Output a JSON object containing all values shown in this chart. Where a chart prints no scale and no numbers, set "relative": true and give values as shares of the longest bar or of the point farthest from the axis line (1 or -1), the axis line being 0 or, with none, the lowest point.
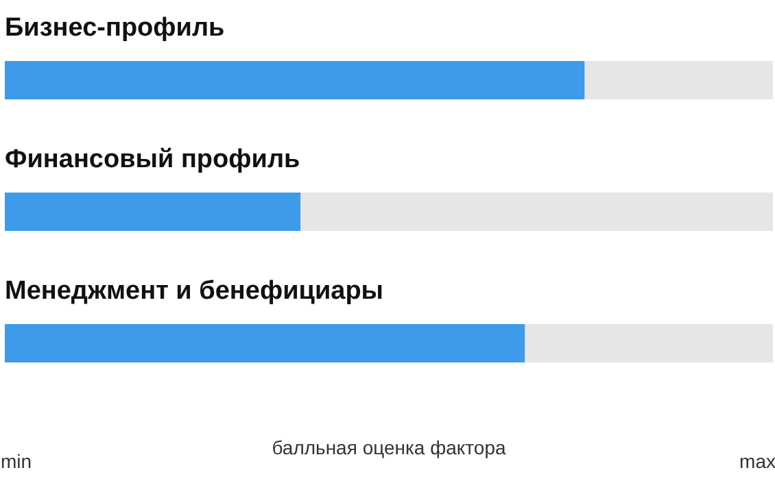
{
  "chart_data": {
    "type": "bar",
    "orientation": "horizontal",
    "relative": true,
    "categories": [
      "Бизнес-профиль",
      "Финансовый профиль",
      "Менеджмент и бенефициары"
    ],
    "values": [
      1,
      0.51,
      0.897
    ],
    "color": "#3d9be9",
    "xlabel": "балльная оценка фактора",
    "annotations": [
      "min",
      "max"
    ]
  }
}
